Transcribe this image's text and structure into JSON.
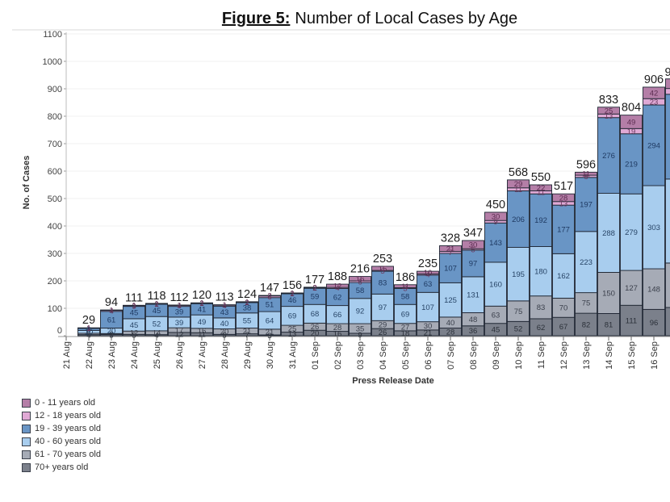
{
  "chart_data": {
    "type": "bar",
    "stacked": true,
    "figure_label": "Figure 5:",
    "title": "Number of Local Cases by Age",
    "xlabel": "Press Release Date",
    "ylabel": "No. of Cases",
    "ylim": [
      0,
      1100
    ],
    "yticks": [
      "0",
      "100",
      "200",
      "300",
      "400",
      "500",
      "600",
      "700",
      "800",
      "900",
      "1000",
      "1100"
    ],
    "grid": true,
    "legend_position": "bottom-left",
    "categories": [
      "21 Aug",
      "22 Aug",
      "23 Aug",
      "24 Aug",
      "25 Aug",
      "26 Aug",
      "27 Aug",
      "28 Aug",
      "29 Aug",
      "30 Aug",
      "31 Aug",
      "01 Sep",
      "02 Sep",
      "03 Sep",
      "04 Sep",
      "05 Sep",
      "06 Sep",
      "07 Sep",
      "08 Sep",
      "09 Sep",
      "10 Sep",
      "11 Sep",
      "12 Sep",
      "13 Sep",
      "14 Sep",
      "15 Sep",
      "16 Sep"
    ],
    "series": [
      {
        "key": "age-0-11",
        "name": "0 - 11 years old",
        "color": "#b47ea7",
        "values": [
          null,
          1,
          1,
          1,
          1,
          1,
          1,
          1,
          1,
          2,
          1,
          2,
          12,
          16,
          15,
          11,
          10,
          21,
          30,
          30,
          29,
          22,
          28,
          11,
          25,
          49,
          42
        ]
      },
      {
        "key": "age-12-18",
        "name": "12 - 18 years old",
        "color": "#e0a9d5",
        "values": [
          null,
          1,
          4,
          3,
          2,
          4,
          2,
          4,
          2,
          6,
          2,
          2,
          4,
          6,
          3,
          3,
          4,
          7,
          5,
          9,
          11,
          11,
          13,
          8,
          13,
          19,
          23
        ]
      },
      {
        "key": "age-19-39",
        "name": "19 - 39 years old",
        "color": "#6995c5",
        "values": [
          null,
          8,
          61,
          45,
          45,
          39,
          41,
          43,
          38,
          51,
          46,
          59,
          62,
          58,
          83,
          58,
          63,
          107,
          97,
          143,
          206,
          192,
          177,
          197,
          276,
          219,
          294
        ]
      },
      {
        "key": "age-40-60",
        "name": "40 - 60 years old",
        "color": "#a8cdee",
        "values": [
          null,
          10,
          20,
          45,
          52,
          39,
          49,
          40,
          55,
          64,
          69,
          68,
          66,
          92,
          97,
          69,
          107,
          125,
          131,
          160,
          195,
          180,
          162,
          223,
          288,
          279,
          303
        ]
      },
      {
        "key": "age-61-70",
        "name": "61 - 70 years old",
        "color": "#a6abb6",
        "values": [
          null,
          5,
          3,
          12,
          14,
          17,
          16,
          20,
          21,
          21,
          25,
          26,
          28,
          35,
          29,
          27,
          30,
          40,
          48,
          63,
          75,
          83,
          70,
          75,
          150,
          127,
          148
        ]
      },
      {
        "key": "age-70-plus",
        "name": "70+ years old",
        "color": "#7b808b",
        "values": [
          null,
          4,
          5,
          5,
          4,
          12,
          11,
          5,
          7,
          3,
          13,
          20,
          16,
          9,
          26,
          18,
          21,
          28,
          36,
          45,
          52,
          62,
          67,
          82,
          81,
          111,
          96
        ]
      }
    ],
    "totals": [
      null,
      29,
      94,
      111,
      118,
      112,
      120,
      113,
      124,
      147,
      156,
      177,
      188,
      216,
      253,
      186,
      235,
      328,
      347,
      450,
      568,
      550,
      517,
      596,
      833,
      804,
      906
    ],
    "total_labels": [
      "",
      "29",
      "94",
      "111",
      "118",
      "112",
      "120",
      "113",
      "124",
      "147",
      "156",
      "177",
      "188",
      "216",
      "253",
      "186",
      "235",
      "328",
      "347",
      "450",
      "568",
      "550",
      "517",
      "596",
      "833",
      "804",
      "906"
    ],
    "clipped_bar": {
      "note": "next bar cut off at right edge; values estimated from visible heights",
      "total_label_visible": "9",
      "values": [
        35,
        21,
        309,
        306,
        162,
        103
      ]
    }
  }
}
